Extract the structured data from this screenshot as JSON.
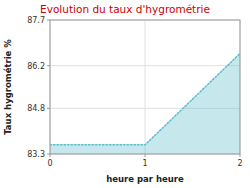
{
  "chart_data": {
    "type": "area",
    "title": "Evolution du taux d'hygrométrie",
    "x_label": "heure par heure",
    "y_label": "Taux hygrométrie %",
    "x": [
      0,
      1,
      2
    ],
    "values": [
      83.6,
      83.6,
      86.6
    ],
    "color": "#5bbccc",
    "line_style": "dotted",
    "xlim": [
      0,
      2
    ],
    "ylim": [
      83.3,
      87.7
    ],
    "xticks": [
      0,
      1,
      2
    ],
    "yticks": [
      83.3,
      84.8,
      86.2,
      87.7
    ],
    "grid": true
  }
}
